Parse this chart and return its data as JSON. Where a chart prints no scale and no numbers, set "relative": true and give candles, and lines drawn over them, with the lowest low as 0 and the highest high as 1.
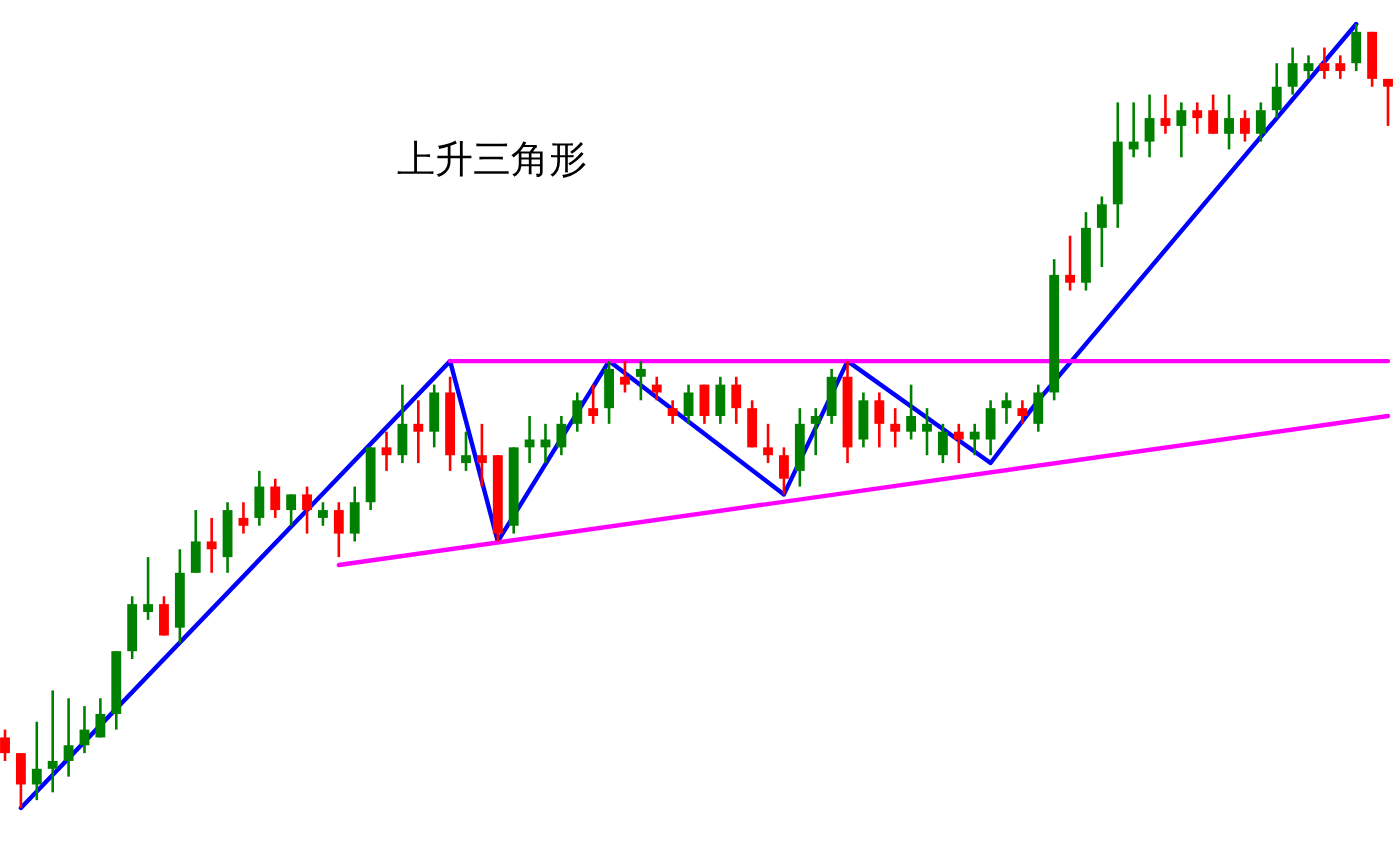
{
  "chart_data": {
    "type": "candlestick",
    "title": "上升三角形",
    "relative": true,
    "categories": [
      null,
      null,
      null,
      null,
      null,
      null,
      null,
      null,
      null,
      null,
      null,
      null,
      null,
      null,
      null,
      null,
      null,
      null,
      null,
      null,
      null,
      null,
      null,
      null,
      null,
      null,
      null,
      null,
      null,
      null,
      null,
      null,
      null,
      null,
      null,
      null,
      null,
      null,
      null,
      null,
      null,
      null,
      null,
      null,
      null,
      null,
      null,
      null,
      null,
      null,
      null,
      null,
      null,
      null,
      null,
      null,
      null,
      null,
      null,
      null,
      null,
      null,
      null,
      null,
      null,
      null,
      null,
      null,
      null,
      null,
      null,
      null,
      null,
      null,
      null,
      null,
      null,
      null,
      null,
      null,
      null,
      null,
      null,
      null,
      null,
      null,
      null,
      null
    ],
    "ohlc": [
      [
        0.09,
        0.1,
        0.06,
        0.07
      ],
      [
        0.07,
        0.07,
        0,
        0.03
      ],
      [
        0.03,
        0.11,
        0.01,
        0.05
      ],
      [
        0.05,
        0.15,
        0.02,
        0.06
      ],
      [
        0.06,
        0.14,
        0.04,
        0.08
      ],
      [
        0.08,
        0.13,
        0.07,
        0.1
      ],
      [
        0.09,
        0.14,
        0.09,
        0.12
      ],
      [
        0.12,
        0.2,
        0.1,
        0.2
      ],
      [
        0.2,
        0.27,
        0.19,
        0.26
      ],
      [
        0.25,
        0.32,
        0.24,
        0.26
      ],
      [
        0.26,
        0.27,
        0.22,
        0.22
      ],
      [
        0.23,
        0.33,
        0.21,
        0.3
      ],
      [
        0.3,
        0.38,
        0.3,
        0.34
      ],
      [
        0.34,
        0.37,
        0.3,
        0.33
      ],
      [
        0.32,
        0.39,
        0.3,
        0.38
      ],
      [
        0.37,
        0.39,
        0.35,
        0.36
      ],
      [
        0.37,
        0.43,
        0.36,
        0.41
      ],
      [
        0.41,
        0.42,
        0.37,
        0.38
      ],
      [
        0.38,
        0.4,
        0.36,
        0.4
      ],
      [
        0.4,
        0.41,
        0.35,
        0.38
      ],
      [
        0.37,
        0.39,
        0.36,
        0.38
      ],
      [
        0.38,
        0.39,
        0.32,
        0.35
      ],
      [
        0.35,
        0.41,
        0.34,
        0.39
      ],
      [
        0.39,
        0.46,
        0.38,
        0.46
      ],
      [
        0.46,
        0.48,
        0.43,
        0.45
      ],
      [
        0.45,
        0.54,
        0.44,
        0.49
      ],
      [
        0.49,
        0.52,
        0.44,
        0.48
      ],
      [
        0.48,
        0.54,
        0.46,
        0.53
      ],
      [
        0.53,
        0.55,
        0.43,
        0.45
      ],
      [
        0.44,
        0.48,
        0.43,
        0.45
      ],
      [
        0.45,
        0.49,
        0.41,
        0.44
      ],
      [
        0.45,
        0.45,
        0.34,
        0.35
      ],
      [
        0.36,
        0.46,
        0.35,
        0.46
      ],
      [
        0.46,
        0.5,
        0.44,
        0.47
      ],
      [
        0.46,
        0.49,
        0.44,
        0.47
      ],
      [
        0.46,
        0.5,
        0.45,
        0.49
      ],
      [
        0.49,
        0.53,
        0.48,
        0.52
      ],
      [
        0.51,
        0.54,
        0.49,
        0.5
      ],
      [
        0.51,
        0.57,
        0.49,
        0.56
      ],
      [
        0.55,
        0.57,
        0.53,
        0.54
      ],
      [
        0.55,
        0.57,
        0.52,
        0.56
      ],
      [
        0.54,
        0.55,
        0.52,
        0.53
      ],
      [
        0.51,
        0.52,
        0.49,
        0.5
      ],
      [
        0.5,
        0.54,
        0.49,
        0.53
      ],
      [
        0.54,
        0.54,
        0.49,
        0.5
      ],
      [
        0.5,
        0.55,
        0.49,
        0.54
      ],
      [
        0.54,
        0.55,
        0.49,
        0.51
      ],
      [
        0.51,
        0.52,
        0.46,
        0.46
      ],
      [
        0.46,
        0.49,
        0.44,
        0.45
      ],
      [
        0.45,
        0.46,
        0.4,
        0.42
      ],
      [
        0.43,
        0.51,
        0.41,
        0.49
      ],
      [
        0.49,
        0.51,
        0.45,
        0.5
      ],
      [
        0.5,
        0.56,
        0.49,
        0.55
      ],
      [
        0.55,
        0.57,
        0.44,
        0.46
      ],
      [
        0.47,
        0.53,
        0.46,
        0.52
      ],
      [
        0.52,
        0.53,
        0.46,
        0.49
      ],
      [
        0.49,
        0.51,
        0.46,
        0.48
      ],
      [
        0.48,
        0.54,
        0.47,
        0.5
      ],
      [
        0.48,
        0.51,
        0.45,
        0.49
      ],
      [
        0.45,
        0.49,
        0.44,
        0.48
      ],
      [
        0.48,
        0.49,
        0.44,
        0.47
      ],
      [
        0.47,
        0.49,
        0.45,
        0.48
      ],
      [
        0.47,
        0.52,
        0.45,
        0.51
      ],
      [
        0.51,
        0.53,
        0.49,
        0.52
      ],
      [
        0.51,
        0.52,
        0.49,
        0.5
      ],
      [
        0.49,
        0.54,
        0.48,
        0.53
      ],
      [
        0.53,
        0.7,
        0.52,
        0.68
      ],
      [
        0.68,
        0.73,
        0.66,
        0.67
      ],
      [
        0.67,
        0.76,
        0.66,
        0.74
      ],
      [
        0.74,
        0.78,
        0.69,
        0.77
      ],
      [
        0.77,
        0.9,
        0.74,
        0.85
      ],
      [
        0.84,
        0.9,
        0.83,
        0.85
      ],
      [
        0.85,
        0.91,
        0.83,
        0.88
      ],
      [
        0.88,
        0.91,
        0.86,
        0.87
      ],
      [
        0.87,
        0.9,
        0.83,
        0.89
      ],
      [
        0.89,
        0.9,
        0.86,
        0.88
      ],
      [
        0.89,
        0.91,
        0.86,
        0.86
      ],
      [
        0.86,
        0.91,
        0.84,
        0.88
      ],
      [
        0.88,
        0.89,
        0.85,
        0.86
      ],
      [
        0.86,
        0.9,
        0.85,
        0.89
      ],
      [
        0.89,
        0.95,
        0.88,
        0.92
      ],
      [
        0.92,
        0.97,
        0.91,
        0.95
      ],
      [
        0.94,
        0.96,
        0.93,
        0.95
      ],
      [
        0.95,
        0.97,
        0.93,
        0.94
      ],
      [
        0.95,
        0.96,
        0.93,
        0.94
      ],
      [
        0.95,
        1.0,
        0.94,
        0.99
      ],
      [
        0.99,
        0.99,
        0.92,
        0.93
      ],
      [
        0.93,
        0.93,
        0.87,
        0.92
      ]
    ],
    "colors": [
      "#ff0000",
      "#ff0000",
      "#008000",
      "#008000",
      "#008000",
      "#008000",
      "#008000",
      "#008000",
      "#008000",
      "#008000",
      "#ff0000",
      "#008000",
      "#008000",
      "#ff0000",
      "#008000",
      "#ff0000",
      "#008000",
      "#ff0000",
      "#008000",
      "#ff0000",
      "#008000",
      "#ff0000",
      "#008000",
      "#008000",
      "#ff0000",
      "#008000",
      "#ff0000",
      "#008000",
      "#ff0000",
      "#008000",
      "#ff0000",
      "#ff0000",
      "#008000",
      "#008000",
      "#008000",
      "#008000",
      "#008000",
      "#ff0000",
      "#008000",
      "#ff0000",
      "#008000",
      "#ff0000",
      "#ff0000",
      "#008000",
      "#ff0000",
      "#008000",
      "#ff0000",
      "#ff0000",
      "#ff0000",
      "#ff0000",
      "#008000",
      "#008000",
      "#008000",
      "#ff0000",
      "#008000",
      "#ff0000",
      "#ff0000",
      "#008000",
      "#008000",
      "#008000",
      "#ff0000",
      "#008000",
      "#008000",
      "#008000",
      "#ff0000",
      "#008000",
      "#008000",
      "#ff0000",
      "#008000",
      "#008000",
      "#008000",
      "#008000",
      "#008000",
      "#ff0000",
      "#008000",
      "#ff0000",
      "#ff0000",
      "#008000",
      "#ff0000",
      "#008000",
      "#008000",
      "#008000",
      "#008000",
      "#ff0000",
      "#ff0000",
      "#008000",
      "#ff0000",
      "#ff0000"
    ],
    "series": [
      {
        "type": "line",
        "color": "#0000ff",
        "values": [
          null,
          0,
          null,
          null,
          null,
          null,
          null,
          null,
          null,
          null,
          null,
          null,
          null,
          null,
          null,
          null,
          null,
          null,
          null,
          null,
          null,
          null,
          null,
          null,
          null,
          null,
          null,
          null,
          0.57,
          null,
          null,
          0.34,
          null,
          null,
          null,
          null,
          null,
          null,
          0.57,
          null,
          null,
          null,
          null,
          null,
          null,
          null,
          null,
          null,
          null,
          0.4,
          null,
          null,
          null,
          0.57,
          null,
          null,
          null,
          null,
          null,
          null,
          null,
          null,
          0.44,
          null,
          null,
          0.52,
          null,
          null,
          null,
          null,
          null,
          null,
          null,
          null,
          null,
          null,
          null,
          null,
          null,
          null,
          null,
          null,
          null,
          null,
          null,
          1.0,
          null,
          null
        ]
      },
      {
        "type": "line",
        "color": "#ff00ff",
        "values": [
          null,
          null,
          null,
          null,
          null,
          null,
          null,
          null,
          null,
          null,
          null,
          null,
          null,
          null,
          null,
          null,
          null,
          null,
          null,
          null,
          null,
          null,
          null,
          null,
          null,
          null,
          null,
          null,
          0.57,
          null,
          null,
          null,
          null,
          null,
          null,
          null,
          null,
          null,
          null,
          null,
          null,
          null,
          null,
          null,
          null,
          null,
          null,
          null,
          null,
          null,
          null,
          null,
          null,
          null,
          null,
          null,
          null,
          null,
          null,
          null,
          null,
          null,
          null,
          null,
          null,
          null,
          null,
          null,
          null,
          null,
          null,
          null,
          null,
          null,
          null,
          null,
          null,
          null,
          null,
          null,
          null,
          null,
          null,
          null,
          null,
          null,
          null,
          0.57
        ]
      },
      {
        "type": "line",
        "color": "#ff00ff",
        "values": [
          null,
          null,
          null,
          null,
          null,
          null,
          null,
          null,
          null,
          null,
          null,
          null,
          null,
          null,
          null,
          null,
          null,
          null,
          null,
          null,
          null,
          0.31,
          null,
          null,
          null,
          null,
          null,
          null,
          null,
          null,
          null,
          null,
          null,
          null,
          null,
          null,
          null,
          null,
          null,
          null,
          null,
          null,
          null,
          null,
          null,
          null,
          null,
          null,
          null,
          null,
          null,
          null,
          null,
          null,
          null,
          null,
          null,
          null,
          null,
          null,
          null,
          null,
          null,
          null,
          null,
          null,
          null,
          null,
          null,
          null,
          null,
          null,
          null,
          null,
          null,
          null,
          null,
          null,
          null,
          null,
          null,
          null,
          null,
          null,
          null,
          null,
          null,
          0.5
        ]
      }
    ]
  }
}
